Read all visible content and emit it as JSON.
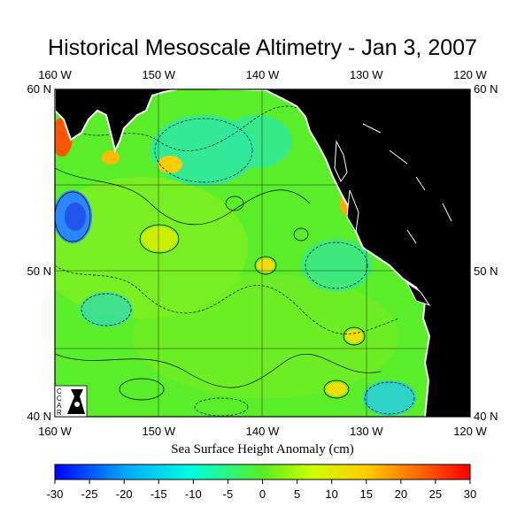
{
  "title": "Historical Mesoscale Altimetry - Jan 3, 2007",
  "map": {
    "lon_ticks": [
      "160 W",
      "150 W",
      "140 W",
      "130 W",
      "120 W"
    ],
    "lat_ticks": [
      "60 N",
      "50 N",
      "40 N"
    ],
    "lon_range": [
      -160,
      -120
    ],
    "lat_range": [
      40,
      60
    ],
    "land_color": "#000000",
    "coastline_color": "#ffffff",
    "logo_letters": [
      "C",
      "C",
      "A",
      "R"
    ]
  },
  "colorbar": {
    "label": "Sea Surface Height Anomaly (cm)",
    "ticks": [
      "-30",
      "-25",
      "-20",
      "-15",
      "-10",
      "-5",
      "0",
      "5",
      "10",
      "15",
      "20",
      "25",
      "30"
    ],
    "range": [
      -30,
      30
    ],
    "colors": [
      "#0000ff",
      "#00aaff",
      "#00ffcc",
      "#44ee33",
      "#ccff00",
      "#ffcc00",
      "#ff6600",
      "#ff0000"
    ]
  }
}
